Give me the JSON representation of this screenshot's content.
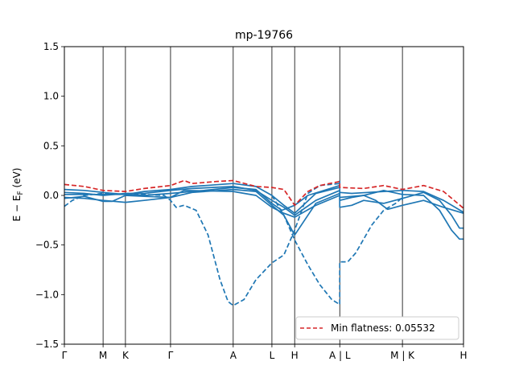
{
  "chart_data": {
    "type": "line",
    "title": "mp-19766",
    "ylabel_html": "E − E_F (eV)",
    "ylim": [
      -1.5,
      1.5
    ],
    "yticks": [
      -1.5,
      -1.0,
      -0.5,
      0.0,
      0.5,
      1.0,
      1.5
    ],
    "ytick_labels": [
      "−1.5",
      "−1.0",
      "−0.5",
      "0.0",
      "0.5",
      "1.0",
      "1.5"
    ],
    "xlim": [
      0,
      1
    ],
    "kpoints": [
      {
        "label": "Γ",
        "x": 0.0
      },
      {
        "label": "M",
        "x": 0.097
      },
      {
        "label": "K",
        "x": 0.153
      },
      {
        "label": "Γ",
        "x": 0.266
      },
      {
        "label": "A",
        "x": 0.423
      },
      {
        "label": "L",
        "x": 0.52
      },
      {
        "label": "H",
        "x": 0.577
      },
      {
        "label": "A | L",
        "x": 0.69
      },
      {
        "label": "M | K",
        "x": 0.847
      },
      {
        "label": "H",
        "x": 1.0
      }
    ],
    "legend": {
      "label": "Min flatness: 0.05532",
      "position": "lower-right",
      "color": "#d62728"
    },
    "colors": {
      "bands": "#1f77b4",
      "flat": "#d62728"
    },
    "series": [
      {
        "style": "solid",
        "points": [
          [
            0,
            0.06
          ],
          [
            0.05,
            0.05
          ],
          [
            0.097,
            0.03
          ],
          [
            0.153,
            0.01
          ],
          [
            0.2,
            0.04
          ],
          [
            0.266,
            0.06
          ],
          [
            0.32,
            0.09
          ],
          [
            0.423,
            0.12
          ],
          [
            0.48,
            0.09
          ],
          [
            0.52,
            0.0
          ],
          [
            0.55,
            -0.1
          ],
          [
            0.577,
            -0.18
          ],
          [
            0.63,
            0.02
          ],
          [
            0.69,
            0.08
          ]
        ]
      },
      {
        "style": "solid",
        "points": [
          [
            0,
            0.03
          ],
          [
            0.05,
            0.02
          ],
          [
            0.097,
            0.0
          ],
          [
            0.153,
            0.02
          ],
          [
            0.2,
            0.02
          ],
          [
            0.266,
            0.05
          ],
          [
            0.32,
            0.07
          ],
          [
            0.423,
            0.09
          ],
          [
            0.48,
            0.05
          ],
          [
            0.52,
            -0.05
          ],
          [
            0.55,
            -0.12
          ],
          [
            0.577,
            -0.2
          ],
          [
            0.63,
            -0.05
          ],
          [
            0.69,
            0.05
          ]
        ]
      },
      {
        "style": "solid",
        "points": [
          [
            0,
            -0.02
          ],
          [
            0.05,
            -0.03
          ],
          [
            0.097,
            -0.05
          ],
          [
            0.153,
            -0.07
          ],
          [
            0.2,
            -0.05
          ],
          [
            0.266,
            -0.02
          ],
          [
            0.32,
            0.03
          ],
          [
            0.423,
            0.06
          ],
          [
            0.48,
            0.04
          ],
          [
            0.52,
            -0.1
          ],
          [
            0.55,
            -0.2
          ],
          [
            0.577,
            -0.4
          ],
          [
            0.63,
            -0.08
          ],
          [
            0.69,
            0.02
          ]
        ]
      },
      {
        "style": "solid",
        "points": [
          [
            0,
            -0.03
          ],
          [
            0.05,
            -0.01
          ],
          [
            0.097,
            -0.06
          ],
          [
            0.12,
            -0.06
          ],
          [
            0.153,
            0.0
          ],
          [
            0.2,
            -0.01
          ],
          [
            0.266,
            -0.02
          ],
          [
            0.3,
            0.05
          ],
          [
            0.423,
            0.04
          ],
          [
            0.48,
            0.0
          ],
          [
            0.52,
            -0.12
          ],
          [
            0.55,
            -0.18
          ],
          [
            0.577,
            -0.22
          ],
          [
            0.63,
            -0.1
          ],
          [
            0.69,
            0.0
          ]
        ]
      },
      {
        "style": "solid",
        "points": [
          [
            0,
            0.01
          ],
          [
            0.097,
            0.01
          ],
          [
            0.153,
            0.01
          ],
          [
            0.2,
            0.0
          ],
          [
            0.266,
            0.02
          ],
          [
            0.35,
            0.05
          ],
          [
            0.423,
            0.08
          ],
          [
            0.48,
            0.06
          ],
          [
            0.52,
            -0.08
          ],
          [
            0.545,
            -0.15
          ],
          [
            0.577,
            -0.1
          ],
          [
            0.61,
            0.0
          ],
          [
            0.69,
            0.1
          ]
        ]
      },
      {
        "style": "solid",
        "points": [
          [
            0.69,
            0.15
          ],
          [
            0.69,
            -0.12
          ],
          [
            0.72,
            -0.1
          ],
          [
            0.75,
            -0.05
          ],
          [
            0.8,
            -0.08
          ],
          [
            0.847,
            -0.03
          ],
          [
            0.9,
            0.03
          ],
          [
            0.94,
            -0.05
          ],
          [
            0.97,
            -0.2
          ],
          [
            0.99,
            -0.33
          ],
          [
            1.0,
            -0.33
          ]
        ]
      },
      {
        "style": "solid",
        "points": [
          [
            0.69,
            0.05
          ],
          [
            0.69,
            -0.05
          ],
          [
            0.72,
            -0.02
          ],
          [
            0.75,
            0.0
          ],
          [
            0.8,
            0.05
          ],
          [
            0.847,
            0.01
          ],
          [
            0.9,
            0.0
          ],
          [
            0.94,
            -0.15
          ],
          [
            0.97,
            -0.35
          ],
          [
            0.99,
            -0.44
          ],
          [
            1.0,
            -0.44
          ]
        ]
      },
      {
        "style": "solid",
        "points": [
          [
            0.69,
            0.03
          ],
          [
            0.72,
            0.02
          ],
          [
            0.76,
            0.03
          ],
          [
            0.8,
            0.04
          ],
          [
            0.847,
            0.05
          ],
          [
            0.9,
            0.04
          ],
          [
            0.95,
            -0.05
          ],
          [
            1.0,
            -0.17
          ]
        ]
      },
      {
        "style": "solid",
        "points": [
          [
            0.69,
            -0.02
          ],
          [
            0.72,
            -0.01
          ],
          [
            0.75,
            0.0
          ],
          [
            0.78,
            -0.05
          ],
          [
            0.81,
            -0.14
          ],
          [
            0.847,
            -0.1
          ],
          [
            0.9,
            -0.05
          ],
          [
            0.95,
            -0.12
          ],
          [
            1.0,
            -0.18
          ]
        ]
      },
      {
        "style": "solid",
        "points": [
          [
            0.847,
            0.05
          ],
          [
            0.847,
            -0.05
          ]
        ]
      },
      {
        "style": "dashed",
        "color": "bands",
        "points": [
          [
            0,
            -0.11
          ],
          [
            0.02,
            -0.05
          ],
          [
            0.05,
            0.0
          ],
          [
            0.097,
            0.02
          ],
          [
            0.153,
            0.01
          ],
          [
            0.2,
            0.01
          ],
          [
            0.25,
            0.0
          ],
          [
            0.266,
            -0.05
          ],
          [
            0.28,
            -0.12
          ],
          [
            0.3,
            -0.1
          ],
          [
            0.33,
            -0.15
          ],
          [
            0.36,
            -0.4
          ],
          [
            0.39,
            -0.85
          ],
          [
            0.41,
            -1.07
          ],
          [
            0.423,
            -1.11
          ],
          [
            0.45,
            -1.05
          ],
          [
            0.48,
            -0.85
          ],
          [
            0.52,
            -0.68
          ],
          [
            0.55,
            -0.6
          ],
          [
            0.577,
            -0.35
          ],
          [
            0.61,
            0.02
          ],
          [
            0.64,
            0.1
          ],
          [
            0.69,
            0.12
          ]
        ]
      },
      {
        "style": "dashed",
        "color": "bands",
        "points": [
          [
            0.52,
            0.0
          ],
          [
            0.55,
            -0.2
          ],
          [
            0.577,
            -0.45
          ],
          [
            0.61,
            -0.7
          ],
          [
            0.64,
            -0.9
          ],
          [
            0.67,
            -1.05
          ],
          [
            0.69,
            -1.1
          ],
          [
            0.69,
            -0.67
          ],
          [
            0.71,
            -0.67
          ],
          [
            0.73,
            -0.58
          ],
          [
            0.77,
            -0.3
          ],
          [
            0.8,
            -0.15
          ],
          [
            0.83,
            -0.08
          ],
          [
            0.847,
            -0.02
          ]
        ]
      },
      {
        "style": "dashed",
        "color": "flat",
        "points": [
          [
            0,
            0.11
          ],
          [
            0.05,
            0.09
          ],
          [
            0.097,
            0.05
          ],
          [
            0.153,
            0.04
          ],
          [
            0.2,
            0.07
          ],
          [
            0.266,
            0.1
          ],
          [
            0.3,
            0.15
          ],
          [
            0.32,
            0.12
          ],
          [
            0.38,
            0.14
          ],
          [
            0.423,
            0.15
          ],
          [
            0.48,
            0.09
          ],
          [
            0.52,
            0.08
          ],
          [
            0.55,
            0.06
          ],
          [
            0.577,
            -0.1
          ],
          [
            0.61,
            0.04
          ],
          [
            0.64,
            0.1
          ],
          [
            0.69,
            0.14
          ],
          [
            0.69,
            0.08
          ],
          [
            0.75,
            0.07
          ],
          [
            0.8,
            0.1
          ],
          [
            0.847,
            0.06
          ],
          [
            0.9,
            0.1
          ],
          [
            0.95,
            0.04
          ],
          [
            1.0,
            -0.13
          ]
        ]
      }
    ]
  }
}
